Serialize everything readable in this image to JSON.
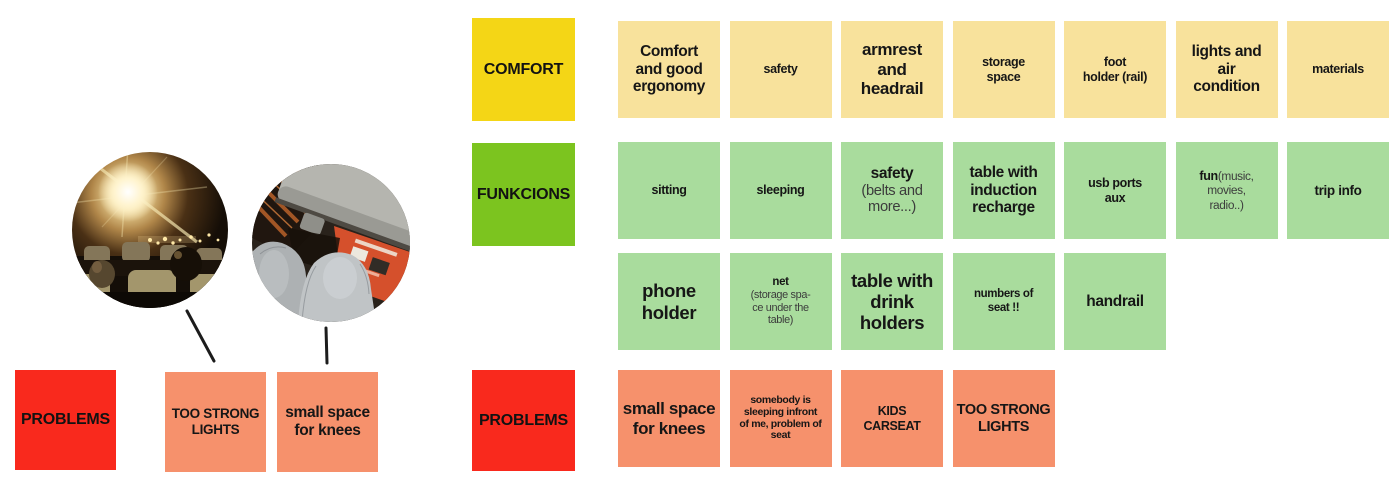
{
  "board": {
    "rows": [
      {
        "label": "COMFORT",
        "label_color": "#f4d616",
        "card_color": "#f8e29c",
        "cards": [
          {
            "bold": "Comfort\nand good\nergonomy",
            "size": "md"
          },
          {
            "bold": "safety",
            "size": "sm"
          },
          {
            "bold": "armrest\nand\nheadrail",
            "size": "lg"
          },
          {
            "bold": "storage\nspace",
            "size": "sm"
          },
          {
            "bold": "foot\nholder (rail)",
            "size": "sm"
          },
          {
            "bold": "lights and\nair\ncondition",
            "size": "md"
          },
          {
            "bold": "materials",
            "size": "sm"
          }
        ]
      },
      {
        "label": "FUNKCIONS",
        "label_color": "#7cc41f",
        "card_color": "#a9dc9d",
        "cards": [
          {
            "bold": "sitting",
            "size": "sm"
          },
          {
            "bold": "sleeping",
            "size": "sm"
          },
          {
            "bold": "safety",
            "regular": "(belts and\nmore...)",
            "regular_display": "block",
            "size": "md"
          },
          {
            "bold": "table with\ninduction\nrecharge",
            "size": "md"
          },
          {
            "bold": "usb ports\naux",
            "size": "sm"
          },
          {
            "bold": "fun",
            "regular": "(music,\nmovies,\nradio..)",
            "regular_display": "inline",
            "size": "sm"
          },
          {
            "bold": "trip info",
            "size": "sm2"
          }
        ]
      },
      {
        "label": "",
        "label_color": "",
        "card_color": "#a9dc9d",
        "cards": [
          {
            "bold": "phone\nholder",
            "size": "xl"
          },
          {
            "bold": "net",
            "regular": "(storage spa-\nce under the\ntable)",
            "regular_display": "block",
            "size": "xs"
          },
          {
            "bold": "table with\ndrink\nholders",
            "size": "xl"
          },
          {
            "bold": "numbers of\nseat !!",
            "size": "xs"
          },
          {
            "bold": "handrail",
            "size": "md"
          }
        ]
      },
      {
        "label": "PROBLEMS",
        "label_color": "#f9291d",
        "card_color": "#f6916c",
        "cards": [
          {
            "bold": "small space\nfor knees",
            "size": "lg"
          },
          {
            "bold": "somebody is\nsleeping infront\nof me, problem of\nseat",
            "size": "xxs"
          },
          {
            "bold": "KIDS\nCARSEAT",
            "size": "sm"
          },
          {
            "bold": "TOO STRONG\nLIGHTS",
            "size": "md2"
          }
        ]
      }
    ]
  },
  "left_panel": {
    "problems_label": "PROBLEMS",
    "cards": [
      {
        "text": "TOO STRONG\nLIGHTS"
      },
      {
        "text": "small space\nfor knees"
      }
    ],
    "photos": [
      {
        "name": "bus-interior-night-strong-lights"
      },
      {
        "name": "knees-against-seat-small-space"
      }
    ]
  }
}
